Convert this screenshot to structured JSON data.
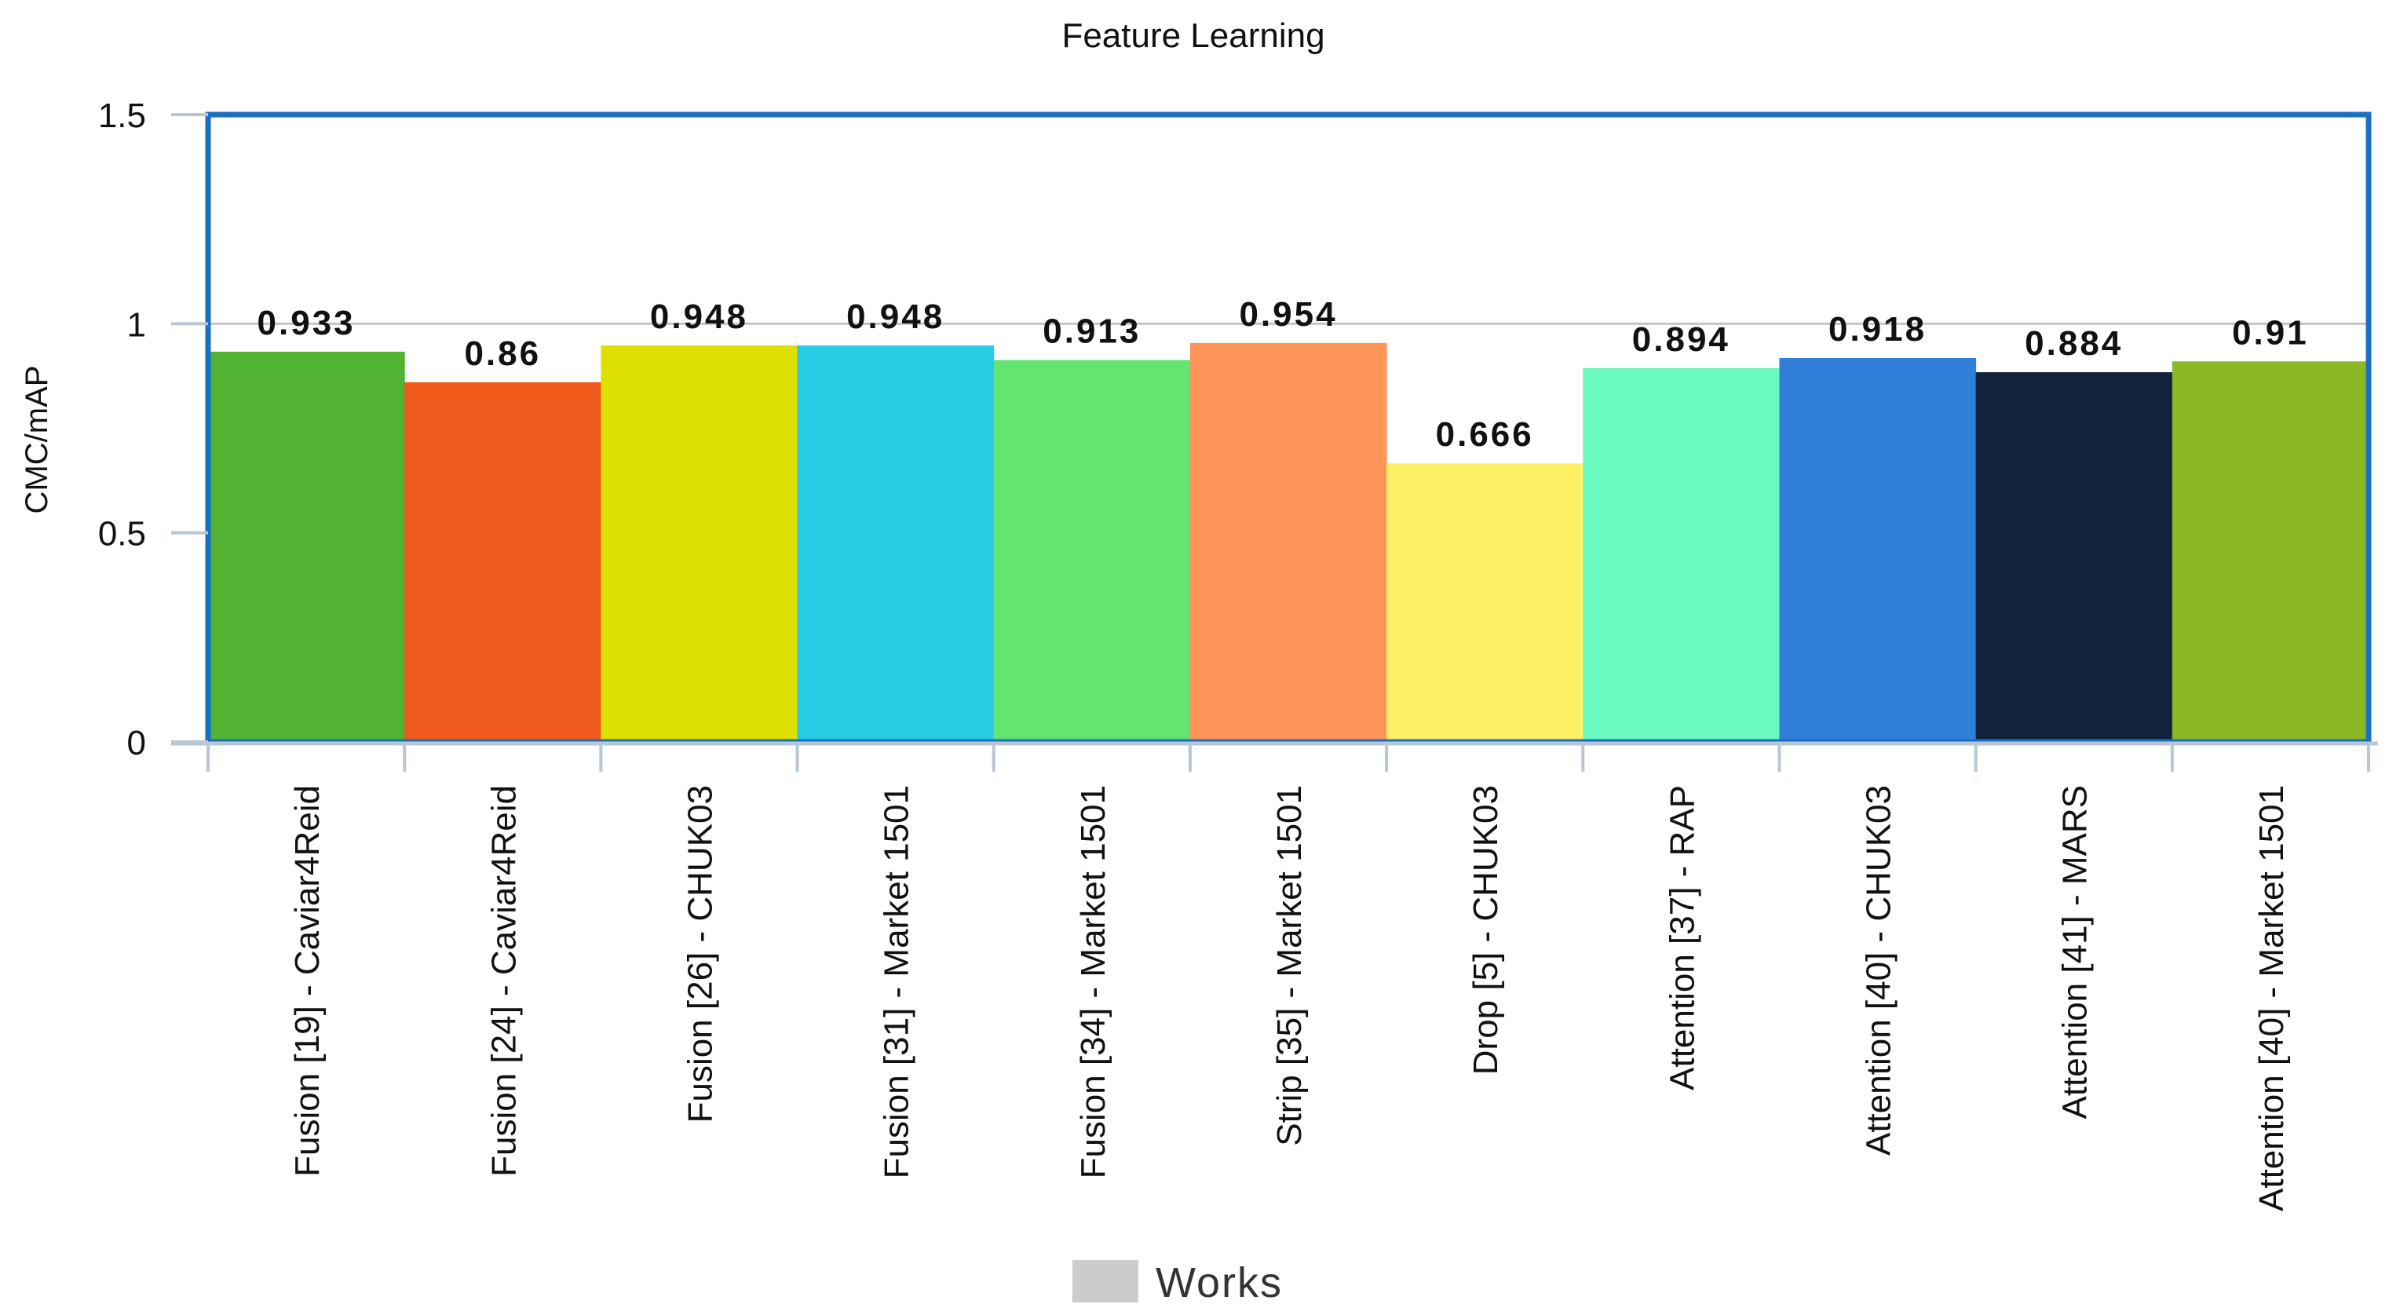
{
  "chart_data": {
    "type": "bar",
    "title": "Feature Learning",
    "xlabel": "",
    "ylabel": "CMC/mAP",
    "ylim": [
      0,
      1.5
    ],
    "yticks": [
      0,
      0.5,
      1,
      1.5
    ],
    "grid": true,
    "legend": {
      "placement": "bottom-center",
      "entries": [
        "Works"
      ],
      "swatch_color": "#cccccc"
    },
    "frame_color": "#1a6fc0",
    "categories": [
      "Fusion [19] - Caviar4Reid",
      "Fusion [24] - Caviar4Reid",
      "Fusion [26] - CHUK03",
      "Fusion [31] - Market 1501",
      "Fusion [34] - Market 1501",
      "Strip [35] - Market 1501",
      "Drop [5] - CHUK03",
      "Attention [37] - RAP",
      "Attention [40] - CHUK03",
      "Attention [41] - MARS",
      "Attention [40] - Market 1501"
    ],
    "values": [
      0.933,
      0.86,
      0.948,
      0.948,
      0.913,
      0.954,
      0.666,
      0.894,
      0.918,
      0.884,
      0.91
    ],
    "value_labels": [
      "0.933",
      "0.86",
      "0.948",
      "0.948",
      "0.913",
      "0.954",
      "0.666",
      "0.894",
      "0.918",
      "0.884",
      "0.91"
    ],
    "colors": [
      "#52b232",
      "#ef5a1c",
      "#dde000",
      "#28cbe4",
      "#63e572",
      "#fe9558",
      "#fff166",
      "#6afac0",
      "#2f7fda",
      "#10233b",
      "#8ab925"
    ],
    "series": [
      {
        "name": "Works",
        "values": [
          0.933,
          0.86,
          0.948,
          0.948,
          0.913,
          0.954,
          0.666,
          0.894,
          0.918,
          0.884,
          0.91
        ]
      }
    ]
  }
}
